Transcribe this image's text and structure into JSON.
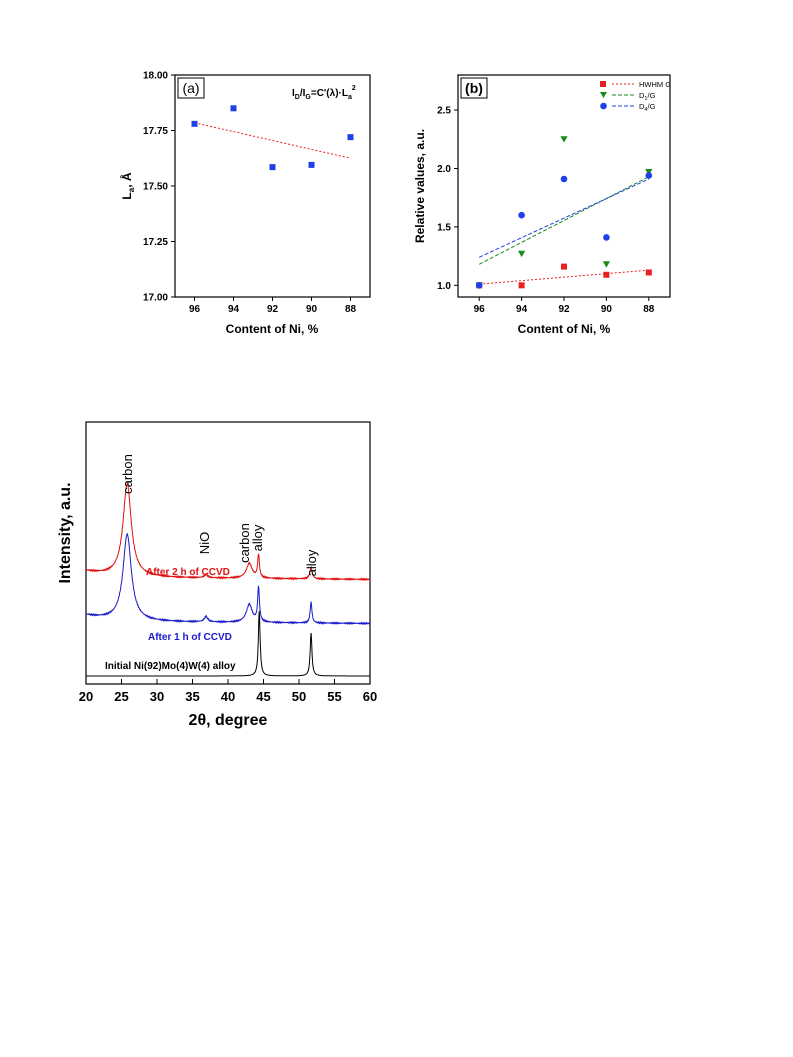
{
  "chart_data": [
    {
      "type": "scatter",
      "panel_label": "(a)",
      "formula": {
        "main": "I",
        "s1": "D",
        "m2": "/I",
        "s2": "G",
        "m3": "=C'(λ)·L",
        "s3": "a",
        "sup": "2"
      },
      "xlabel": "Content of Ni, %",
      "ylabel": {
        "main": "L",
        "sub": "a",
        "rest": ", Å"
      },
      "xlim": [
        97,
        87
      ],
      "ylim": [
        17.0,
        18.0
      ],
      "xticks": [
        "96",
        "94",
        "92",
        "90",
        "88"
      ],
      "yticks": [
        "17.00",
        "17.25",
        "17.50",
        "17.75",
        "18.00"
      ],
      "points": {
        "x": [
          96,
          94,
          92,
          90,
          88
        ],
        "y": [
          17.78,
          17.85,
          17.585,
          17.595,
          17.72
        ],
        "color": "#1f3fe8",
        "marker": "square"
      },
      "fit": {
        "x": [
          96,
          88
        ],
        "y": [
          17.785,
          17.625
        ],
        "color": "#e82020"
      }
    },
    {
      "type": "scatter",
      "panel_label": "(b)",
      "xlabel": "Content of Ni, %",
      "ylabel": "Relative values, a.u.",
      "xlim": [
        97,
        87
      ],
      "ylim": [
        0.9,
        2.8
      ],
      "xticks": [
        "96",
        "94",
        "92",
        "90",
        "88"
      ],
      "yticks": [
        "1.0",
        "1.5",
        "2.0",
        "2.5"
      ],
      "legend_position": "top-right",
      "series": [
        {
          "name": "HWHM G",
          "marker": "square",
          "color": "#e82020",
          "x": [
            96,
            94,
            92,
            90,
            88
          ],
          "y": [
            1.0,
            1.0,
            1.16,
            1.09,
            1.11
          ],
          "fit": [
            1.01,
            1.13
          ]
        },
        {
          "name": {
            "main": "D",
            "sub": "1",
            "rest": "/G"
          },
          "marker": "triangle-down",
          "color": "#1a8a1a",
          "x": [
            96,
            94,
            92,
            90,
            88
          ],
          "y": [
            1.0,
            1.27,
            2.25,
            1.18,
            1.97
          ],
          "fit": [
            1.18,
            1.93
          ]
        },
        {
          "name": {
            "main": "D",
            "sub": "4",
            "rest": "/G"
          },
          "marker": "circle",
          "color": "#1f3fe8",
          "x": [
            96,
            94,
            92,
            90,
            88
          ],
          "y": [
            1.0,
            1.6,
            1.91,
            1.41,
            1.94
          ],
          "fit": [
            1.24,
            1.91
          ]
        }
      ]
    },
    {
      "type": "line",
      "xlabel": "2θ, degree",
      "ylabel": "Intensity, a.u.",
      "xlim": [
        20,
        60
      ],
      "xticks": [
        "20",
        "25",
        "30",
        "35",
        "40",
        "45",
        "50",
        "55",
        "60"
      ],
      "series": [
        {
          "name": "Initial Ni(92)Mo(4)W(4) alloy",
          "color": "#000000",
          "baseline": 0.0,
          "peaks": [
            [
              44.4,
              0.62,
              0.15
            ],
            [
              51.7,
              0.41,
              0.15
            ]
          ]
        },
        {
          "name": "After 1 h of CCVD",
          "color": "#1a1acc",
          "baseline": 0.52,
          "peaks": [
            [
              25.8,
              0.82,
              0.7
            ],
            [
              36.9,
              0.05,
              0.3
            ],
            [
              43.0,
              0.17,
              0.5
            ],
            [
              44.3,
              0.33,
              0.15
            ],
            [
              51.7,
              0.2,
              0.15
            ]
          ]
        },
        {
          "name": "After 2 h of CCVD",
          "color": "#e01010",
          "baseline": 0.94,
          "peaks": [
            [
              25.8,
              0.88,
              0.7
            ],
            [
              36.9,
              0.03,
              0.3
            ],
            [
              43.0,
              0.14,
              0.5
            ],
            [
              44.3,
              0.22,
              0.15
            ],
            [
              51.7,
              0.11,
              0.2
            ]
          ]
        }
      ],
      "annotations": [
        "carbon",
        "NiO",
        "carbon",
        "alloy",
        "alloy"
      ]
    }
  ]
}
